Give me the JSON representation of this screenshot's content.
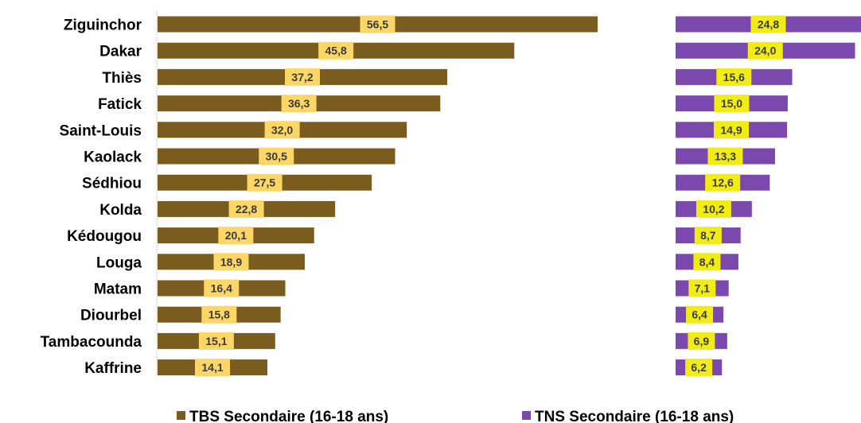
{
  "chart_data": {
    "type": "bar",
    "orientation": "horizontal",
    "categories": [
      "Ziguinchor",
      "Dakar",
      "Thiès",
      "Fatick",
      "Saint-Louis",
      "Kaolack",
      "Sédhiou",
      "Kolda",
      "Kédougou",
      "Louga",
      "Matam",
      "Diourbel",
      "Tambacounda",
      "Kaffrine"
    ],
    "series": [
      {
        "name": "TBS Secondaire (16-18 ans)",
        "color": "#7a5c1e",
        "label_color": "#fcd666",
        "values": [
          56.5,
          45.8,
          37.2,
          36.3,
          32.0,
          30.5,
          27.5,
          22.8,
          20.1,
          18.9,
          16.4,
          15.8,
          15.1,
          14.1
        ],
        "labels": [
          "56,5",
          "45,8",
          "37,2",
          "36,3",
          "32,0",
          "30,5",
          "27,5",
          "22,8",
          "20,1",
          "18,9",
          "16,4",
          "15,8",
          "15,1",
          "14,1"
        ]
      },
      {
        "name": "TNS Secondaire (16-18 ans)",
        "color": "#7b48ae",
        "label_color": "#f2ec16",
        "values": [
          24.8,
          24.0,
          15.6,
          15.0,
          14.9,
          13.3,
          12.6,
          10.2,
          8.7,
          8.4,
          7.1,
          6.4,
          6.9,
          6.2
        ],
        "labels": [
          "24,8",
          "24,0",
          "15,6",
          "15,0",
          "14,9",
          "13,3",
          "12,6",
          "10,2",
          "8,7",
          "8,4",
          "7,1",
          "6,4",
          "6,9",
          "6,2"
        ]
      }
    ],
    "title": "",
    "xlabel": "",
    "ylabel": "",
    "legend_position": "bottom"
  }
}
